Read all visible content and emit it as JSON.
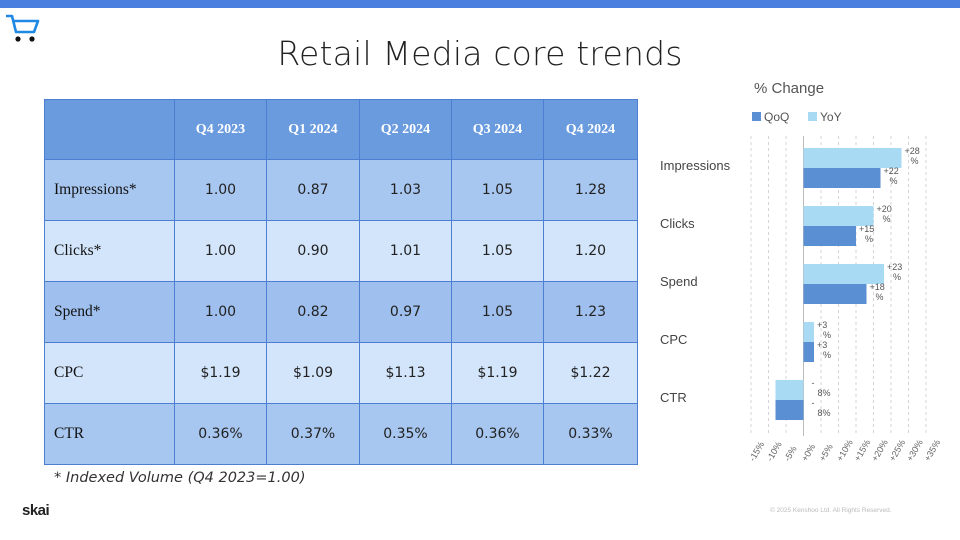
{
  "slide": {
    "title": "Retail Media core trends",
    "footnote": "* Indexed Volume (Q4 2023=1.00)",
    "logo_text": "skai",
    "copyright": "© 2025 Kenshoo Ltd. All Rights Reserved.",
    "icon": "shopping-cart-icon",
    "colors": {
      "accent_bar": "#4a7fe0",
      "header_fill": "#6a9bde",
      "qoq": "#5b8fd3",
      "yoy": "#a8daf3"
    }
  },
  "table": {
    "columns": [
      "",
      "Q4 2023",
      "Q1 2024",
      "Q2 2024",
      "Q3 2024",
      "Q4 2024"
    ],
    "rows": [
      {
        "label": "Impressions*",
        "values": [
          "1.00",
          "0.87",
          "1.03",
          "1.05",
          "1.28"
        ]
      },
      {
        "label": "Clicks*",
        "values": [
          "1.00",
          "0.90",
          "1.01",
          "1.05",
          "1.20"
        ]
      },
      {
        "label": "Spend*",
        "values": [
          "1.00",
          "0.82",
          "0.97",
          "1.05",
          "1.23"
        ]
      },
      {
        "label": "CPC",
        "values": [
          "$1.19",
          "$1.09",
          "$1.13",
          "$1.19",
          "$1.22"
        ]
      },
      {
        "label": "CTR",
        "values": [
          "0.36%",
          "0.37%",
          "0.35%",
          "0.36%",
          "0.33%"
        ]
      }
    ]
  },
  "chart_data": {
    "type": "bar",
    "orientation": "horizontal",
    "title": "% Change",
    "categories": [
      "Impressions",
      "Clicks",
      "Spend",
      "CPC",
      "CTR"
    ],
    "series": [
      {
        "name": "QoQ",
        "values": [
          22,
          15,
          18,
          3,
          -8
        ],
        "labels": [
          "+22 %",
          "+15 %",
          "+18 %",
          "+3 %",
          "- 8%"
        ]
      },
      {
        "name": "YoY",
        "values": [
          28,
          20,
          23,
          3,
          -8
        ],
        "labels": [
          "+28 %",
          "+20 %",
          "+23 %",
          "+3 %",
          "- 8%"
        ]
      }
    ],
    "xlim": [
      -15,
      35
    ],
    "xticks": [
      "-15%",
      "-10%",
      "-5%",
      "+0%",
      "+5%",
      "+10%",
      "+15%",
      "+20%",
      "+25%",
      "+30%",
      "+35%"
    ],
    "grid": true,
    "legend": "top-left"
  }
}
